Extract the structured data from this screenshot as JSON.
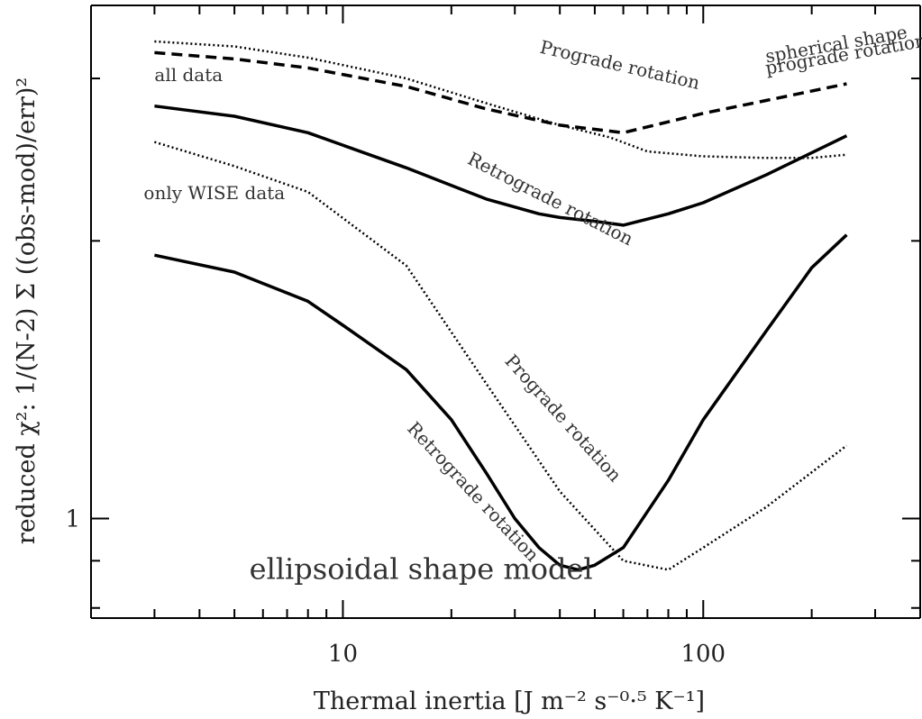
{
  "chart_data": {
    "type": "line",
    "xscale": "log",
    "yscale": "log",
    "xlim": [
      2,
      400
    ],
    "ylim": [
      0.78,
      3.6
    ],
    "xticks": [
      10,
      100
    ],
    "xtick_labels": [
      "10",
      "100"
    ],
    "yticks": [
      1
    ],
    "ytick_labels": [
      "1"
    ],
    "xlabel": "Thermal inertia [J m⁻² s⁻⁰·⁵ K⁻¹]",
    "ylabel": "reduced χ²: 1/(N-2) Σ ((obs-mod)/err)²",
    "series": [
      {
        "name": "all data – Prograde rotation",
        "style": "dotted",
        "color": "#000000",
        "x": [
          3,
          5,
          8,
          15,
          25,
          40,
          55,
          70,
          100,
          150,
          200,
          250
        ],
        "y": [
          3.29,
          3.25,
          3.16,
          3.0,
          2.82,
          2.67,
          2.59,
          2.5,
          2.47,
          2.46,
          2.46,
          2.48
        ]
      },
      {
        "name": "all data – spherical shape, prograde rotation",
        "style": "dashed",
        "color": "#000000",
        "x": [
          3,
          5,
          8,
          15,
          25,
          40,
          60,
          100,
          150,
          250
        ],
        "y": [
          3.2,
          3.15,
          3.08,
          2.94,
          2.78,
          2.67,
          2.62,
          2.75,
          2.84,
          2.96
        ]
      },
      {
        "name": "all data – Retrograde rotation",
        "style": "solid",
        "color": "#000000",
        "x": [
          3,
          5,
          8,
          15,
          25,
          35,
          40,
          50,
          60,
          80,
          100,
          150,
          250
        ],
        "y": [
          2.8,
          2.73,
          2.62,
          2.4,
          2.22,
          2.14,
          2.12,
          2.1,
          2.08,
          2.14,
          2.2,
          2.36,
          2.6
        ]
      },
      {
        "name": "only WISE data – Prograde rotation",
        "style": "dotted",
        "color": "#000000",
        "x": [
          3,
          5,
          8,
          15,
          25,
          40,
          60,
          80,
          100,
          150,
          250
        ],
        "y": [
          2.56,
          2.41,
          2.26,
          1.88,
          1.4,
          1.07,
          0.9,
          0.88,
          0.93,
          1.03,
          1.2
        ]
      },
      {
        "name": "only WISE data – Retrograde rotation",
        "style": "solid",
        "color": "#000000",
        "x": [
          3,
          5,
          8,
          10,
          15,
          20,
          25,
          30,
          35,
          40,
          45,
          50,
          60,
          80,
          100,
          150,
          200,
          250
        ],
        "y": [
          1.93,
          1.85,
          1.72,
          1.62,
          1.45,
          1.28,
          1.12,
          1.0,
          0.93,
          0.89,
          0.88,
          0.89,
          0.93,
          1.1,
          1.28,
          1.6,
          1.87,
          2.03
        ]
      }
    ],
    "annotations": [
      {
        "text": "Prograde rotation",
        "x": 35,
        "y": 3.2,
        "rotate": 13,
        "size": "note"
      },
      {
        "text": "spherical shape",
        "x": 150,
        "y": 3.12,
        "rotate": -10,
        "size": "note"
      },
      {
        "text": "prograde rotation",
        "x": 150,
        "y": 3.03,
        "rotate": -10,
        "size": "note"
      },
      {
        "text": "all data",
        "x": 3.0,
        "y": 2.98,
        "rotate": 0,
        "size": "note"
      },
      {
        "text": "Retrograde rotation",
        "x": 22,
        "y": 2.43,
        "rotate": 27,
        "size": "note"
      },
      {
        "text": "only WISE data",
        "x": 2.8,
        "y": 2.22,
        "rotate": 0,
        "size": "note"
      },
      {
        "text": "Prograde rotation",
        "x": 28,
        "y": 1.48,
        "rotate": 48,
        "size": "note"
      },
      {
        "text": "Retrograde rotation",
        "x": 15,
        "y": 1.25,
        "rotate": 47,
        "size": "note"
      },
      {
        "text": "ellipsoidal shape model",
        "x": 5.5,
        "y": 0.86,
        "rotate": 0,
        "size": "note-lg"
      }
    ]
  }
}
